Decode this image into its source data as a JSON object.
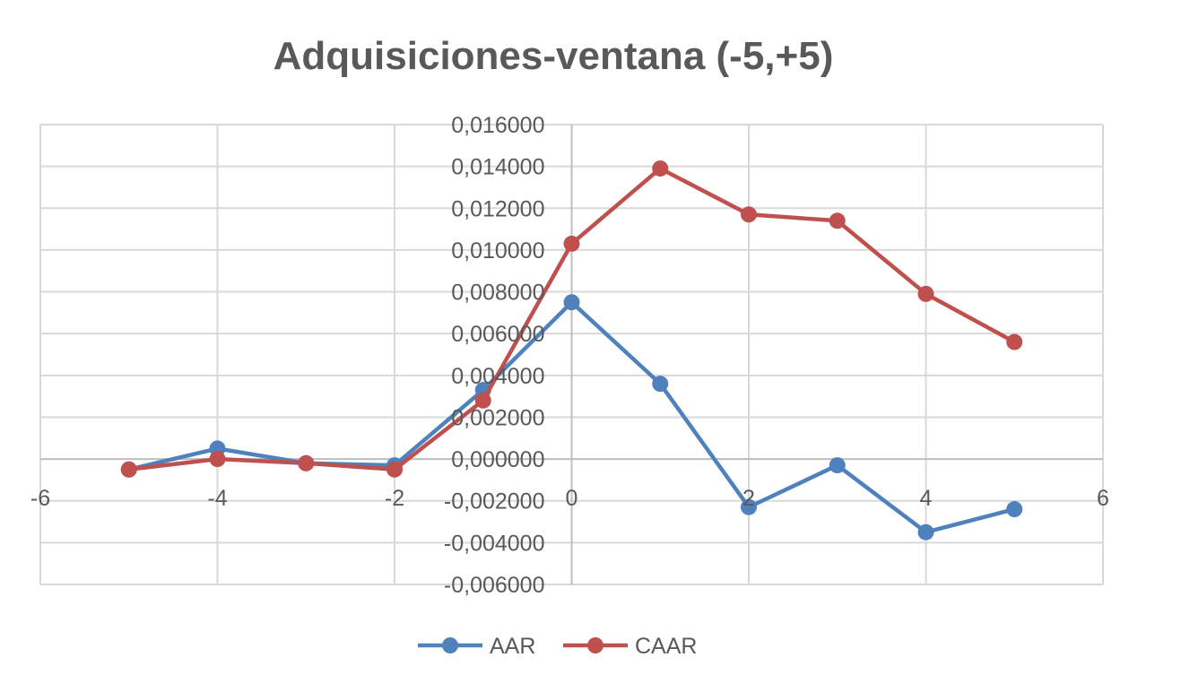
{
  "chart_data": {
    "type": "line",
    "title": "Adquisiciones-ventana (-5,+5)",
    "xlabel": "",
    "ylabel": "",
    "xlim": [
      -6,
      6
    ],
    "ylim": [
      -0.006,
      0.016
    ],
    "x_ticks": [
      "-6",
      "-4",
      "-2",
      "0",
      "2",
      "4",
      "6"
    ],
    "y_ticks": [
      "0,016000",
      "0,014000",
      "0,012000",
      "0,010000",
      "0,008000",
      "0,006000",
      "0,004000",
      "0,002000",
      "0,000000",
      "-0,002000",
      "-0,004000",
      "-0,006000"
    ],
    "grid": true,
    "legend_position": "bottom",
    "x": [
      -5,
      -4,
      -3,
      -2,
      -1,
      0,
      1,
      2,
      3,
      4,
      5
    ],
    "series": [
      {
        "name": "AAR",
        "color": "#4f81bd",
        "values": [
          -0.0005,
          0.0005,
          -0.0002,
          -0.0003,
          0.0033,
          0.0075,
          0.0036,
          -0.0023,
          -0.0003,
          -0.0035,
          -0.0024
        ]
      },
      {
        "name": "CAAR",
        "color": "#c0504d",
        "values": [
          -0.0005,
          0.0,
          -0.0002,
          -0.0005,
          0.0028,
          0.0103,
          0.0139,
          0.0117,
          0.0114,
          0.0079,
          0.0056
        ]
      }
    ]
  }
}
